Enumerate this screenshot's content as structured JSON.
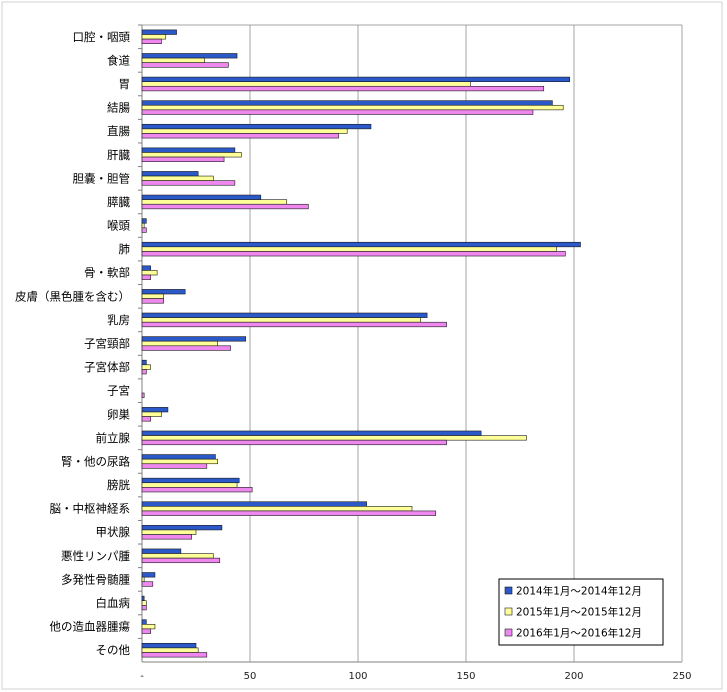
{
  "chart_data": {
    "type": "bar",
    "orientation": "horizontal",
    "categories": [
      "口腔・咽頭",
      "食道",
      "胃",
      "結腸",
      "直腸",
      "肝臓",
      "胆嚢・胆管",
      "膵臓",
      "喉頭",
      "肺",
      "骨・軟部",
      "皮膚（黒色腫を含む）",
      "乳房",
      "子宮頸部",
      "子宮体部",
      "子宮",
      "卵巣",
      "前立腺",
      "腎・他の尿路",
      "膀胱",
      "脳・中枢神経系",
      "甲状腺",
      "悪性リンパ腫",
      "多発性骨髄腫",
      "白血病",
      "他の造血器腫瘍",
      "その他"
    ],
    "series": [
      {
        "name": "2014年1月～2014年12月",
        "color": "#2B59C9",
        "values": [
          16,
          44,
          198,
          190,
          106,
          43,
          26,
          55,
          2,
          203,
          4,
          20,
          132,
          48,
          2,
          0,
          12,
          157,
          34,
          45,
          104,
          37,
          18,
          6,
          1,
          2,
          25
        ]
      },
      {
        "name": "2015年1月～2015年12月",
        "color": "#FFFF99",
        "values": [
          11,
          29,
          152,
          195,
          95,
          46,
          33,
          67,
          1,
          192,
          7,
          10,
          129,
          35,
          4,
          0,
          9,
          178,
          35,
          44,
          125,
          25,
          33,
          1,
          2,
          6,
          26
        ]
      },
      {
        "name": "2016年1月～2016年12月",
        "color": "#EE88EE",
        "values": [
          9,
          40,
          186,
          181,
          91,
          38,
          43,
          77,
          2,
          196,
          4,
          10,
          141,
          41,
          2,
          1,
          4,
          141,
          30,
          51,
          136,
          23,
          36,
          5,
          2,
          4,
          30
        ]
      }
    ],
    "x_ticks": [
      "-",
      "50",
      "100",
      "150",
      "200",
      "250"
    ],
    "xlim": [
      0,
      250
    ],
    "grid": true,
    "legend_position": "bottom-right"
  }
}
